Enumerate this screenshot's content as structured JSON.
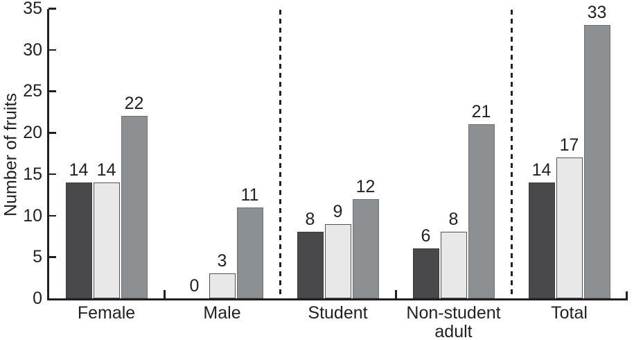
{
  "chart_data": {
    "type": "bar",
    "title": "",
    "ylabel": "Number of fruits",
    "xlabel": "",
    "ylim": [
      0,
      35
    ],
    "yticks": [
      0,
      5,
      10,
      15,
      20,
      25,
      30,
      35
    ],
    "categories": [
      "Female",
      "Male",
      "Student",
      "Non-student adult",
      "Total"
    ],
    "category_display": [
      "Female",
      "Male",
      "Student",
      "Non-student\nadult",
      "Total"
    ],
    "grid": false,
    "legend_position": "none",
    "bar_value_labels": true,
    "group_separators": {
      "style": "dashed",
      "after_categories": [
        "Male",
        "Non-student adult"
      ]
    },
    "series": [
      {
        "name": "dark-gray",
        "color": "#49494c",
        "border_color": "#3a3a3c",
        "values": [
          14,
          0,
          8,
          6,
          14
        ]
      },
      {
        "name": "light-gray",
        "color": "#e8e8e9",
        "border_color": "#505154",
        "values": [
          14,
          3,
          9,
          8,
          17
        ]
      },
      {
        "name": "medium-gray",
        "color": "#8d9093",
        "border_color": "#6c6f73",
        "values": [
          22,
          11,
          12,
          21,
          33
        ]
      }
    ]
  },
  "styles": {
    "background": "#ffffff",
    "axis_color": "#231f20",
    "text_color": "#231f20"
  }
}
